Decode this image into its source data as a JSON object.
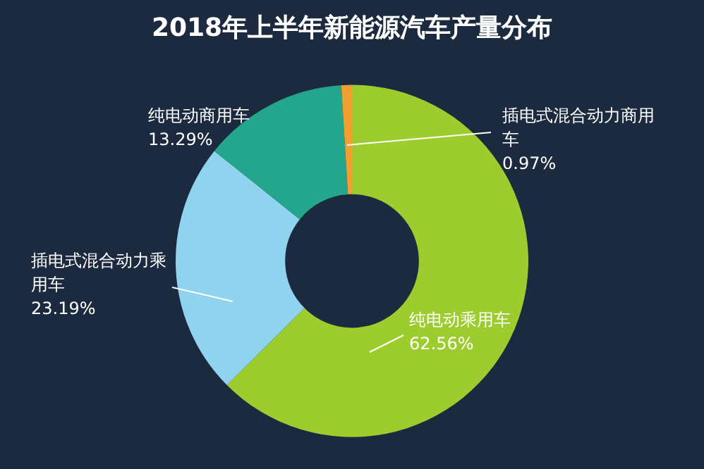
{
  "chart_data": {
    "type": "donut",
    "title": "2018年上半年新能源汽车产量分布",
    "categories": [
      "纯电动乘用车",
      "插电式混合动力乘用车",
      "纯电动商用车",
      "插电式混合动力商用车"
    ],
    "values": [
      62.56,
      23.19,
      13.29,
      0.97
    ],
    "value_labels": [
      "62.56%",
      "23.19%",
      "13.29%",
      "0.97%"
    ],
    "colors": [
      "#9ccc2e",
      "#8fd3ef",
      "#23a68b",
      "#f0a030"
    ],
    "legend": false
  }
}
